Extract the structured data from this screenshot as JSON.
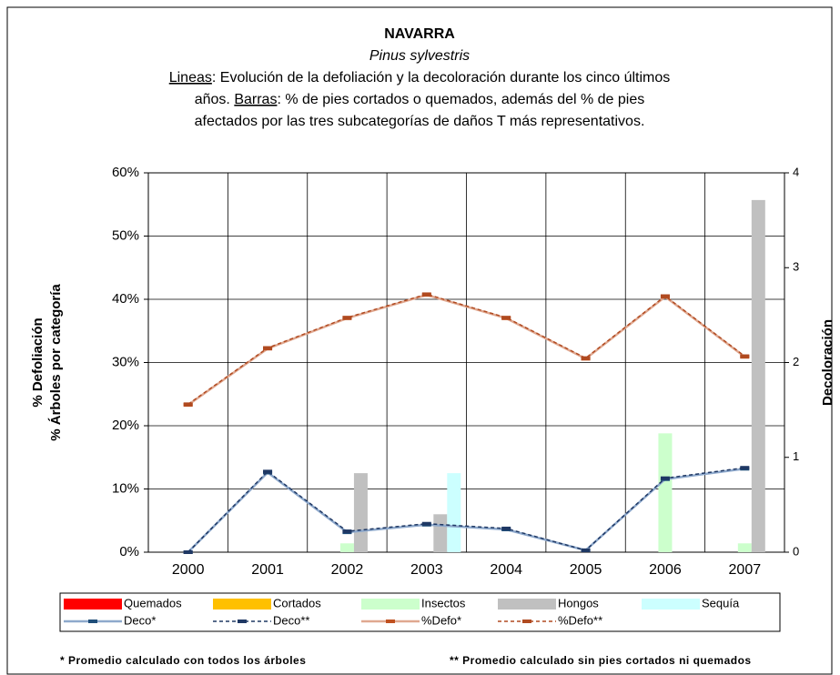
{
  "chart_data": {
    "type": "combo",
    "title": "NAVARRA",
    "subtitle": "Pinus sylvestris",
    "description": [
      [
        {
          "text": "Lineas",
          "underline": true
        },
        {
          "text": ": Evolución de la defoliación y la decoloración durante los cinco últimos"
        }
      ],
      [
        {
          "text": "años. "
        },
        {
          "text": "Barras",
          "underline": true
        },
        {
          "text": ": % de pies cortados o quemados, además del % de pies"
        }
      ],
      [
        {
          "text": "afectados por las tres subcategorías de daños T más representativos."
        }
      ]
    ],
    "ylabel": [
      "% Defoliación",
      "% Árboles por categoría"
    ],
    "y2label": "Decoloración",
    "categories": [
      "2000",
      "2001",
      "2002",
      "2003",
      "2004",
      "2005",
      "2006",
      "2007"
    ],
    "ylim": [
      0,
      60
    ],
    "yticks": [
      {
        "value": 0,
        "label": "0%"
      },
      {
        "value": 10,
        "label": "10%"
      },
      {
        "value": 20,
        "label": "20%"
      },
      {
        "value": 30,
        "label": "30%"
      },
      {
        "value": 40,
        "label": "40%"
      },
      {
        "value": 50,
        "label": "50%"
      },
      {
        "value": 60,
        "label": "60%"
      }
    ],
    "y2lim": [
      0,
      4
    ],
    "y2ticks": [
      0,
      1,
      2,
      3,
      4
    ],
    "grid": true,
    "series": [
      {
        "name": "Quemados",
        "kind": "bar",
        "color": "#FF0000",
        "values": [
          0,
          0,
          0,
          0,
          0,
          0,
          0,
          0
        ]
      },
      {
        "name": "Cortados",
        "kind": "bar",
        "color": "#FFC000",
        "values": [
          0,
          0,
          0,
          0,
          0,
          0,
          0,
          0
        ]
      },
      {
        "name": "Insectos",
        "kind": "bar",
        "color": "#CCFFCC",
        "values": [
          0,
          0,
          1.4,
          0,
          0,
          0,
          18.8,
          1.4
        ]
      },
      {
        "name": "Hongos",
        "kind": "bar",
        "color": "#C0C0C0",
        "values": [
          0,
          0,
          12.5,
          6,
          0,
          0,
          0,
          55.7
        ]
      },
      {
        "name": "Sequía",
        "kind": "bar",
        "color": "#CCFFFF",
        "values": [
          0,
          0,
          0,
          12.5,
          0,
          0,
          0,
          0
        ]
      },
      {
        "name": "Deco*",
        "kind": "line",
        "axis": "y2",
        "color": "#8EA9CC",
        "marker_color": "#1F4E79",
        "dash": false,
        "values": [
          0,
          0.84,
          0.21,
          0.29,
          0.24,
          0.02,
          0.77,
          0.88
        ]
      },
      {
        "name": "Deco**",
        "kind": "line",
        "axis": "y2",
        "color": "#1F3864",
        "marker_color": "#1F3864",
        "dash": true,
        "values": [
          0,
          0.85,
          0.22,
          0.3,
          0.25,
          0.02,
          0.78,
          0.89
        ]
      },
      {
        "name": "%Defo*",
        "kind": "line",
        "color": "#E0A890",
        "marker_color": "#C0501F",
        "dash": false,
        "values": [
          23.3,
          32.2,
          37,
          40.7,
          37,
          30.6,
          40.4,
          30.9
        ]
      },
      {
        "name": "%Defo**",
        "kind": "line",
        "color": "#B04A20",
        "marker_color": "#B04A20",
        "dash": true,
        "values": [
          23.4,
          32.3,
          37.1,
          40.8,
          37.1,
          30.7,
          40.5,
          31
        ]
      }
    ],
    "footnotes": [
      "* Promedio calculado con todos los árboles",
      "** Promedio calculado sin pies cortados ni quemados"
    ]
  }
}
